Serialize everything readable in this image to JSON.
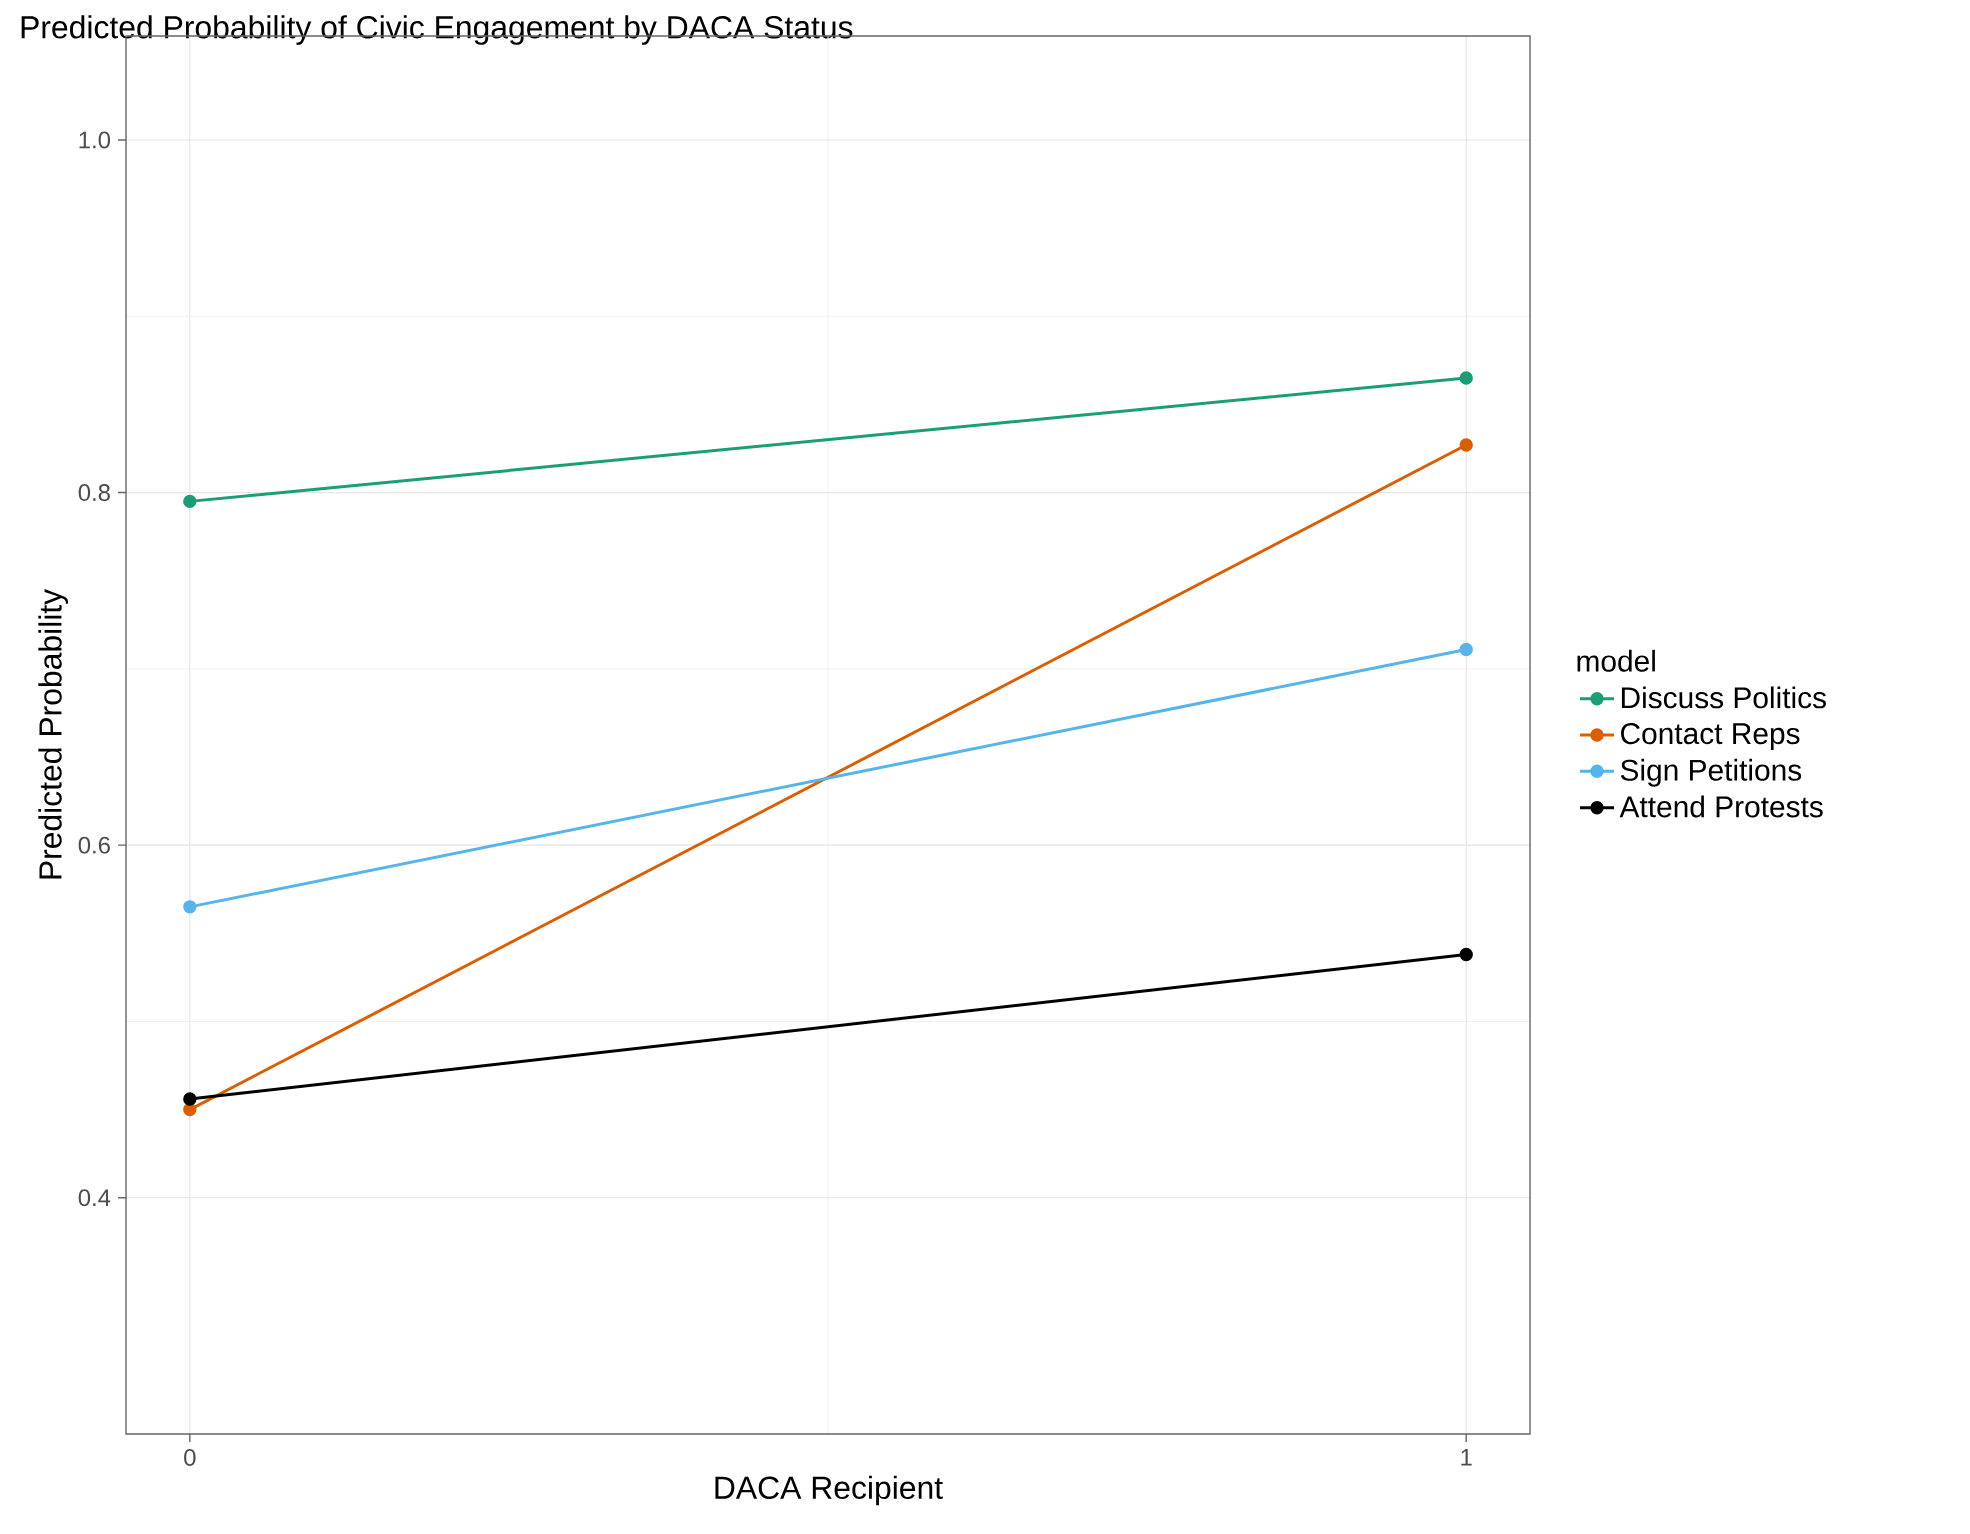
{
  "chart_data": {
    "type": "line",
    "title": "Predicted Probability of Civic Engagement by DACA Status",
    "xlabel": "DACA Recipient",
    "ylabel": "Predicted Probability",
    "legend_title": "model",
    "x": [
      0,
      1
    ],
    "series": [
      {
        "name": "Discuss Politics",
        "color": "#1b9e77",
        "values": [
          0.795,
          0.865
        ]
      },
      {
        "name": "Contact Reps",
        "color": "#d95f02",
        "values": [
          0.45,
          0.827
        ]
      },
      {
        "name": "Sign Petitions",
        "color": "#56b4e9",
        "values": [
          0.565,
          0.711
        ]
      },
      {
        "name": "Attend Protests",
        "color": "#000000",
        "values": [
          0.456,
          0.538
        ]
      }
    ],
    "xlim": [
      -0.05,
      1.05
    ],
    "ylim": [
      0.266,
      1.059
    ],
    "xticks": [
      0,
      1
    ],
    "yticks": [
      {
        "value": 0.4,
        "label": "0.4"
      },
      {
        "value": 0.6,
        "label": "0.6"
      },
      {
        "value": 0.8,
        "label": "0.8"
      },
      {
        "value": 1.0,
        "label": "1.0"
      }
    ],
    "grid": true,
    "legend": "right",
    "marker": "circle",
    "line_style": "solid"
  }
}
